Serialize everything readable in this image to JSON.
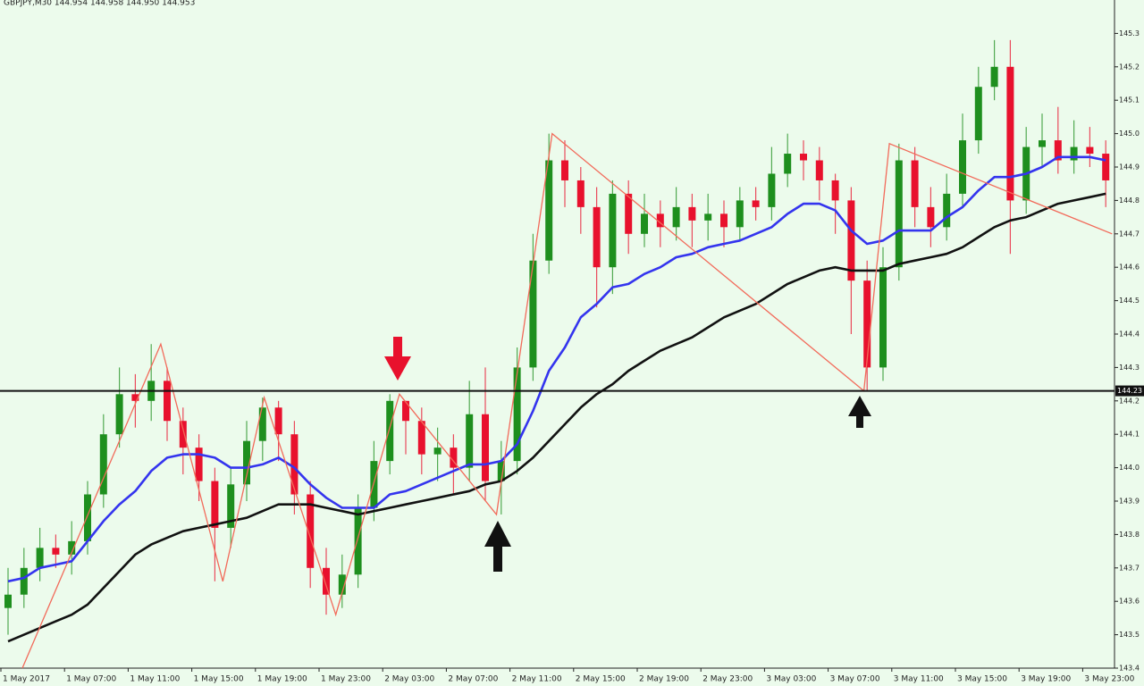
{
  "chart_data": {
    "type": "candlestick",
    "title": "GBPJPY,M30  144.954 144.958 144.950 144.953",
    "up_color": "#1e8f1e",
    "down_color": "#e8112d",
    "ylim": [
      143.4,
      145.4
    ],
    "yticks": [
      143.4,
      143.5,
      143.6,
      143.7,
      143.8,
      143.9,
      {
        "value": 144,
        "label": "144.0"
      },
      144.1,
      144.2,
      144.3,
      144.4,
      144.5,
      144.6,
      144.7,
      144.8,
      144.9,
      {
        "value": 145,
        "label": "145.0"
      },
      145.1,
      145.2,
      145.3
    ],
    "xticks": [
      {
        "value": 0,
        "label": "1 May 2017"
      },
      {
        "value": 4,
        "label": "1 May 07:00"
      },
      {
        "value": 8,
        "label": "1 May 11:00"
      },
      {
        "value": 12,
        "label": "1 May 15:00"
      },
      {
        "value": 16,
        "label": "1 May 19:00"
      },
      {
        "value": 20,
        "label": "1 May 23:00"
      },
      {
        "value": 24,
        "label": "2 May 03:00"
      },
      {
        "value": 28,
        "label": "2 May 07:00"
      },
      {
        "value": 32,
        "label": "2 May 11:00"
      },
      {
        "value": 36,
        "label": "2 May 15:00"
      },
      {
        "value": 40,
        "label": "2 May 19:00"
      },
      {
        "value": 44,
        "label": "2 May 23:00"
      },
      {
        "value": 48,
        "label": "3 May 03:00"
      },
      {
        "value": 52,
        "label": "3 May 07:00"
      },
      {
        "value": 56,
        "label": "3 May 11:00"
      },
      {
        "value": 60,
        "label": "3 May 15:00"
      },
      {
        "value": 64,
        "label": "3 May 19:00"
      },
      {
        "value": 68,
        "label": "3 May 23:00"
      }
    ],
    "open": [
      143.58,
      143.62,
      143.7,
      143.76,
      143.74,
      143.78,
      143.92,
      144.1,
      144.22,
      144.2,
      144.26,
      144.14,
      144.06,
      143.96,
      143.82,
      143.95,
      144.08,
      144.18,
      144.1,
      143.92,
      143.7,
      143.62,
      143.68,
      143.88,
      144.02,
      144.2,
      144.14,
      144.04,
      144.06,
      144.0,
      144.16,
      143.96,
      144.02,
      144.3,
      144.62,
      144.92,
      144.86,
      144.78,
      144.6,
      144.82,
      144.7,
      144.76,
      144.72,
      144.78,
      144.74,
      144.76,
      144.72,
      144.8,
      144.78,
      144.88,
      144.94,
      144.92,
      144.86,
      144.8,
      144.56,
      144.3,
      144.6,
      144.92,
      144.78,
      144.72,
      144.82,
      144.98,
      145.14,
      145.2,
      144.8,
      144.96,
      144.98,
      144.92,
      144.96,
      144.94
    ],
    "high": [
      143.7,
      143.76,
      143.82,
      143.8,
      143.84,
      143.96,
      144.16,
      144.3,
      144.28,
      144.37,
      144.3,
      144.18,
      144.1,
      144.0,
      144.0,
      144.14,
      144.21,
      144.2,
      144.14,
      143.96,
      143.76,
      143.74,
      143.92,
      144.08,
      144.22,
      144.2,
      144.18,
      144.12,
      144.1,
      144.26,
      144.3,
      144.08,
      144.36,
      144.7,
      145.0,
      144.98,
      144.9,
      144.84,
      144.86,
      144.86,
      144.82,
      144.8,
      144.84,
      144.82,
      144.82,
      144.8,
      144.84,
      144.84,
      144.96,
      145.0,
      144.98,
      144.96,
      144.88,
      144.84,
      144.62,
      144.66,
      144.97,
      144.96,
      144.84,
      144.88,
      145.06,
      145.2,
      145.28,
      145.28,
      145.02,
      145.06,
      145.08,
      145.04,
      145.02,
      144.98
    ],
    "low": [
      143.5,
      143.58,
      143.66,
      143.7,
      143.68,
      143.74,
      143.88,
      144.06,
      144.12,
      144.14,
      144.08,
      143.98,
      143.9,
      143.66,
      143.76,
      143.9,
      144.02,
      144.02,
      143.86,
      143.64,
      143.56,
      143.58,
      143.64,
      143.84,
      143.98,
      144.04,
      143.98,
      143.96,
      143.92,
      143.96,
      143.9,
      143.86,
      143.98,
      144.26,
      144.58,
      144.78,
      144.7,
      144.48,
      144.52,
      144.64,
      144.66,
      144.66,
      144.68,
      144.66,
      144.68,
      144.66,
      144.68,
      144.74,
      144.74,
      144.84,
      144.86,
      144.8,
      144.7,
      144.4,
      144.23,
      144.26,
      144.56,
      144.72,
      144.66,
      144.68,
      144.78,
      144.94,
      145.1,
      144.64,
      144.76,
      144.9,
      144.88,
      144.88,
      144.9,
      144.78
    ],
    "close": [
      143.62,
      143.7,
      143.76,
      143.74,
      143.78,
      143.92,
      144.1,
      144.22,
      144.2,
      144.26,
      144.14,
      144.06,
      143.96,
      143.82,
      143.95,
      144.08,
      144.18,
      144.1,
      143.92,
      143.7,
      143.62,
      143.68,
      143.88,
      144.02,
      144.2,
      144.14,
      144.04,
      144.06,
      144.0,
      144.16,
      143.96,
      144.02,
      144.3,
      144.62,
      144.92,
      144.86,
      144.78,
      144.6,
      144.82,
      144.7,
      144.76,
      144.72,
      144.78,
      144.74,
      144.76,
      144.72,
      144.8,
      144.78,
      144.88,
      144.94,
      144.92,
      144.86,
      144.8,
      144.56,
      144.3,
      144.6,
      144.92,
      144.78,
      144.72,
      144.82,
      144.98,
      145.14,
      145.2,
      144.8,
      144.96,
      144.98,
      144.92,
      144.96,
      144.94,
      144.86
    ],
    "lines": [
      {
        "color": "#3434ee",
        "values": [
          143.66,
          143.67,
          143.7,
          143.71,
          143.72,
          143.78,
          143.84,
          143.89,
          143.93,
          143.99,
          144.03,
          144.04,
          144.04,
          144.03,
          144.0,
          144.0,
          144.01,
          144.03,
          144.0,
          143.95,
          143.91,
          143.88,
          143.88,
          143.88,
          143.92,
          143.93,
          143.95,
          143.97,
          143.99,
          144.01,
          144.01,
          144.02,
          144.07,
          144.17,
          144.29,
          144.36,
          144.45,
          144.49,
          144.54,
          144.55,
          144.58,
          144.6,
          144.63,
          144.64,
          144.66,
          144.67,
          144.68,
          144.7,
          144.72,
          144.76,
          144.79,
          144.79,
          144.77,
          144.71,
          144.67,
          144.68,
          144.71,
          144.71,
          144.71,
          144.75,
          144.78,
          144.83,
          144.87,
          144.87,
          144.88,
          144.9,
          144.93,
          144.93,
          144.93,
          144.92
        ]
      },
      {
        "color": "#111111",
        "values": [
          143.48,
          143.5,
          143.52,
          143.54,
          143.56,
          143.59,
          143.64,
          143.69,
          143.74,
          143.77,
          143.79,
          143.81,
          143.82,
          143.83,
          143.84,
          143.85,
          143.87,
          143.89,
          143.89,
          143.89,
          143.88,
          143.87,
          143.86,
          143.87,
          143.88,
          143.89,
          143.9,
          143.91,
          143.92,
          143.93,
          143.95,
          143.96,
          143.99,
          144.03,
          144.08,
          144.13,
          144.18,
          144.22,
          144.25,
          144.29,
          144.32,
          144.35,
          144.37,
          144.39,
          144.42,
          144.45,
          144.47,
          144.49,
          144.52,
          144.55,
          144.57,
          144.59,
          144.6,
          144.59,
          144.59,
          144.59,
          144.61,
          144.62,
          144.63,
          144.64,
          144.66,
          144.69,
          144.72,
          144.74,
          144.75,
          144.77,
          144.79,
          144.8,
          144.81,
          144.82
        ]
      }
    ],
    "zigzag": {
      "color": "#f26a5a",
      "x": [
        0.9,
        9.6,
        13.5,
        16.1,
        20.6,
        24.6,
        30.7,
        34.2,
        53.8,
        55.4,
        69.4
      ],
      "values": [
        143.4,
        144.37,
        143.66,
        144.21,
        143.56,
        144.22,
        143.86,
        145.0,
        144.23,
        144.97,
        144.7
      ]
    },
    "hline": {
      "value": 144.23,
      "label": "144.23",
      "color": "#111111"
    }
  }
}
